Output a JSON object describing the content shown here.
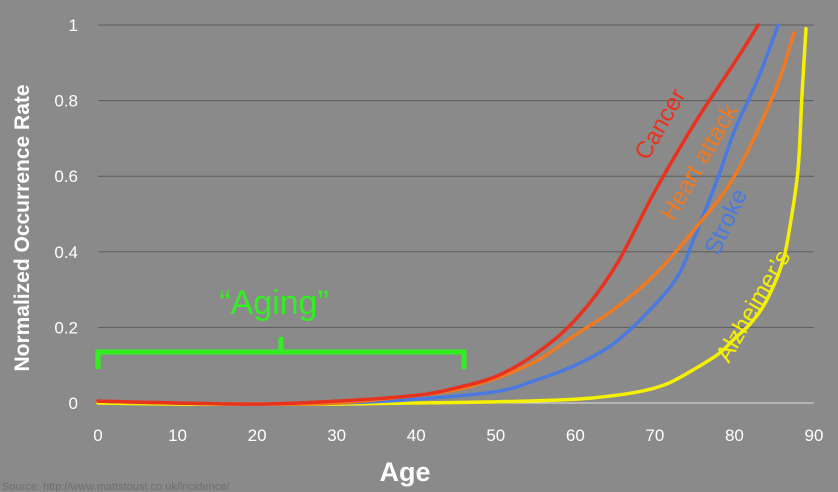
{
  "chart_data": {
    "type": "line",
    "title": "",
    "xlabel": "Age",
    "ylabel": "Normalized Occurrence Rate",
    "xlim": [
      0,
      90
    ],
    "ylim": [
      0,
      1
    ],
    "xticks": [
      "0",
      "10",
      "20",
      "30",
      "40",
      "50",
      "60",
      "70",
      "80",
      "90"
    ],
    "yticks": [
      "0",
      "0.2",
      "0.4",
      "0.6",
      "0.8",
      "1"
    ],
    "grid": "horizontal",
    "legend": "none (inline curve labels)",
    "series": [
      {
        "name": "Cancer",
        "color": "#e8321e",
        "x": [
          0,
          10,
          20,
          30,
          40,
          45,
          50,
          55,
          60,
          65,
          70,
          75,
          80,
          83
        ],
        "y": [
          0.005,
          0.0,
          -0.003,
          0.005,
          0.02,
          0.04,
          0.07,
          0.13,
          0.22,
          0.36,
          0.56,
          0.74,
          0.9,
          1.0
        ]
      },
      {
        "name": "Heart attack",
        "color": "#f07a22",
        "x": [
          0,
          10,
          20,
          30,
          40,
          45,
          50,
          55,
          60,
          65,
          70,
          75,
          80,
          85,
          87.5
        ],
        "y": [
          0.005,
          0.0,
          -0.003,
          0.0,
          0.02,
          0.035,
          0.065,
          0.11,
          0.18,
          0.25,
          0.34,
          0.46,
          0.6,
          0.82,
          0.98
        ]
      },
      {
        "name": "Stroke",
        "color": "#4a7ae0",
        "x": [
          0,
          10,
          20,
          30,
          40,
          50,
          55,
          60,
          65,
          70,
          73,
          75,
          78,
          80,
          83,
          85.5
        ],
        "y": [
          0.005,
          0.0,
          -0.003,
          0.0,
          0.01,
          0.03,
          0.06,
          0.1,
          0.16,
          0.26,
          0.34,
          0.44,
          0.6,
          0.72,
          0.86,
          1.0
        ]
      },
      {
        "name": "Alzheimer’s",
        "color": "#f5f000",
        "x": [
          0,
          10,
          20,
          30,
          40,
          50,
          60,
          65,
          68,
          70,
          72,
          75,
          78,
          80,
          82,
          84,
          86,
          87,
          88,
          88.5,
          89
        ],
        "y": [
          0.0,
          -0.003,
          -0.003,
          -0.003,
          0.0,
          0.003,
          0.01,
          0.02,
          0.03,
          0.04,
          0.055,
          0.09,
          0.13,
          0.17,
          0.21,
          0.27,
          0.37,
          0.47,
          0.62,
          0.82,
          0.99
        ]
      }
    ],
    "annotations": [
      {
        "text": "“Aging”",
        "color": "#33ee22",
        "bracket_from_x": 0,
        "bracket_to_x": 46
      }
    ],
    "source": "Source: http://www.mattstoust.co.uk/incidence/"
  }
}
